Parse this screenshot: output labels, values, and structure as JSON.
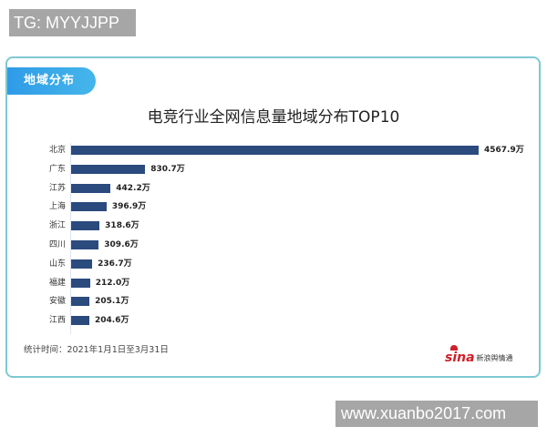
{
  "watermarks": {
    "top": "TG: MYYJJPP",
    "bottom": "www.xuanbo2017.com"
  },
  "section_tag": "地域分布",
  "colors": {
    "bar": "#2b4a7e",
    "frame_border": "#7ec8d3",
    "tag_gradient_start": "#2f9be8",
    "tag_gradient_end": "#45b6ea"
  },
  "footnote": "统计时间：2021年1月1日至3月31日",
  "logo": {
    "brand": "sina",
    "text": "新浪舆情通"
  },
  "chart_data": {
    "type": "bar",
    "orientation": "horizontal",
    "title": "电竞行业全网信息量地域分布TOP10",
    "xlabel": "",
    "ylabel": "",
    "unit": "万",
    "grid": false,
    "legend": false,
    "categories": [
      "北京",
      "广东",
      "江苏",
      "上海",
      "浙江",
      "四川",
      "山东",
      "福建",
      "安徽",
      "江西"
    ],
    "values": [
      4567.9,
      830.7,
      442.2,
      396.9,
      318.6,
      309.6,
      236.7,
      212.0,
      205.1,
      204.6
    ],
    "value_labels": [
      "4567.9万",
      "830.7万",
      "442.2万",
      "396.9万",
      "318.6万",
      "309.6万",
      "236.7万",
      "212.0万",
      "205.1万",
      "204.6万"
    ]
  }
}
